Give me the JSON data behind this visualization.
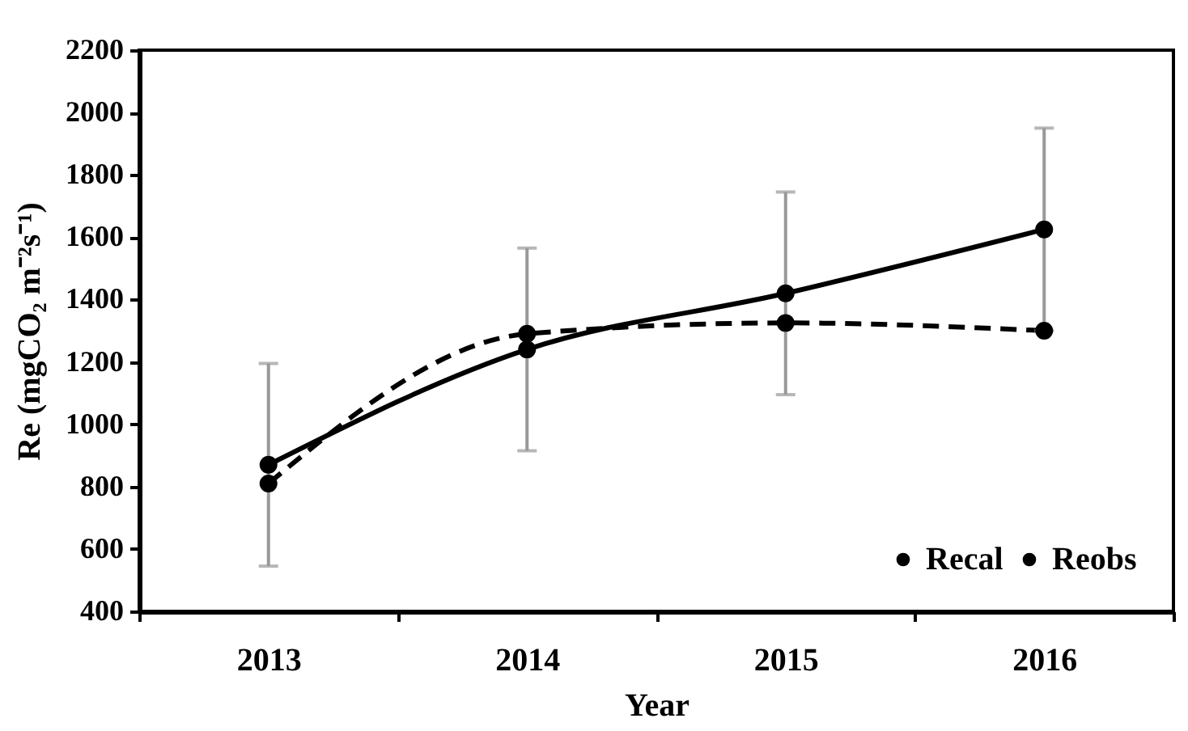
{
  "chart_data": {
    "type": "line",
    "xlabel": "Year",
    "ylabel": "Re (mgCO₂ m⁻²s⁻¹)",
    "categories": [
      "2013",
      "2014",
      "2015",
      "2016"
    ],
    "series": [
      {
        "name": "Recal",
        "color": "#000000",
        "line_style": "dashed",
        "marker": "circle",
        "values": [
          810,
          1290,
          1325,
          1300
        ]
      },
      {
        "name": "Reobs",
        "color": "#000000",
        "line_style": "solid",
        "marker": "circle",
        "values": [
          870,
          1240,
          1420,
          1625
        ],
        "errors": [
          325,
          325,
          325,
          325
        ]
      }
    ],
    "ylim": [
      400,
      2200
    ],
    "yticks": [
      400,
      600,
      800,
      1000,
      1200,
      1400,
      1600,
      1800,
      2000,
      2200
    ],
    "grid": false,
    "legend": "bottom right"
  }
}
